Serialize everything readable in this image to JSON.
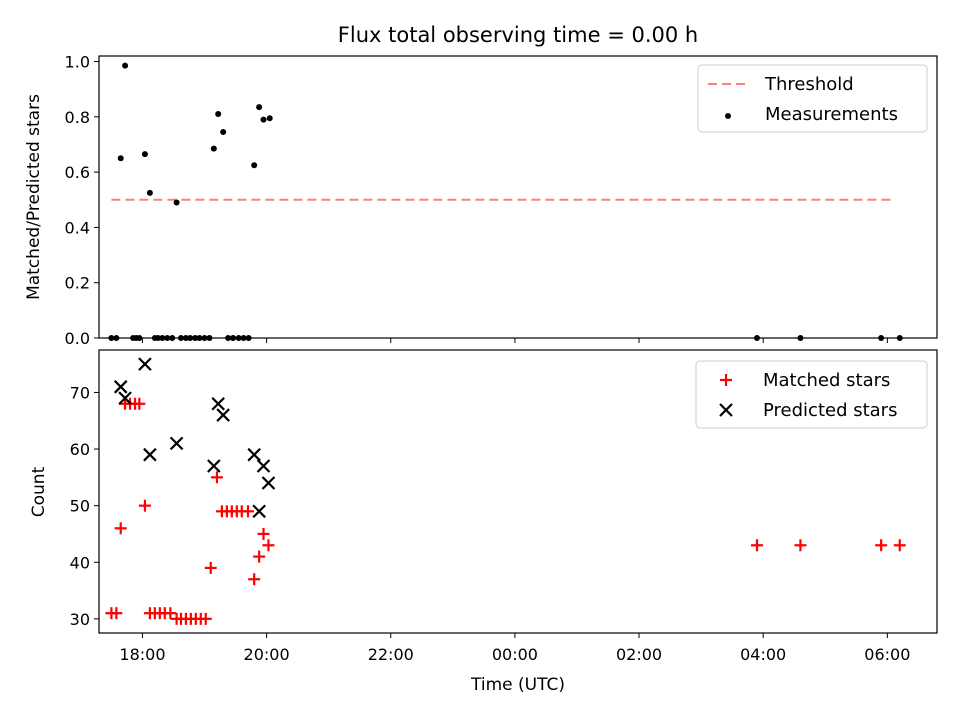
{
  "figure": {
    "title": "Flux total observing time = 0.00 h"
  },
  "chart_data": [
    {
      "type": "scatter",
      "panel": "top",
      "ylabel": "Matched/Predicted stars",
      "xlim": [
        17.3,
        30.8
      ],
      "ylim": [
        0,
        1.02
      ],
      "yticks": [
        0.0,
        0.2,
        0.4,
        0.6,
        0.8,
        1.0
      ],
      "ytick_labels": [
        "0.0",
        "0.2",
        "0.4",
        "0.6",
        "0.8",
        "1.0"
      ],
      "legend": {
        "placement": "top-right",
        "threshold_label": "Threshold",
        "measurements_label": "Measurements"
      },
      "threshold": {
        "value": 0.5,
        "x_start": 17.5,
        "x_end": 30.1,
        "color": "#ff7f7f"
      },
      "measurements": {
        "color": "#000000",
        "x": [
          17.5,
          17.58,
          17.65,
          17.72,
          17.85,
          17.9,
          17.95,
          18.04,
          18.12,
          18.2,
          18.25,
          18.32,
          18.4,
          18.48,
          18.55,
          18.62,
          18.7,
          18.77,
          18.85,
          18.92,
          19.0,
          19.08,
          19.15,
          19.22,
          19.3,
          19.38,
          19.46,
          19.55,
          19.63,
          19.71,
          19.8,
          19.88,
          19.95,
          20.05,
          27.9,
          28.6,
          29.9,
          30.2
        ],
        "y": [
          0.0,
          0.0,
          0.65,
          0.985,
          0.0,
          0.0,
          0.0,
          0.665,
          0.525,
          0.0,
          0.0,
          0.0,
          0.0,
          0.0,
          0.49,
          0.0,
          0.0,
          0.0,
          0.0,
          0.0,
          0.0,
          0.0,
          0.685,
          0.81,
          0.745,
          0.0,
          0.0,
          0.0,
          0.0,
          0.0,
          0.625,
          0.835,
          0.79,
          0.795,
          0.0,
          0.0,
          0.0,
          0.0
        ]
      }
    },
    {
      "type": "scatter",
      "panel": "bottom",
      "xlabel": "Time (UTC)",
      "ylabel": "Count",
      "xlim": [
        17.3,
        30.8
      ],
      "ylim": [
        27.5,
        77.5
      ],
      "xticks": [
        18,
        20,
        22,
        24,
        26,
        28,
        30
      ],
      "xtick_labels": [
        "18:00",
        "20:00",
        "22:00",
        "00:00",
        "02:00",
        "04:00",
        "06:00"
      ],
      "yticks": [
        30,
        40,
        50,
        60,
        70
      ],
      "ytick_labels": [
        "30",
        "40",
        "50",
        "60",
        "70"
      ],
      "legend": {
        "placement": "top-right",
        "matched_label": "Matched stars",
        "predicted_label": "Predicted stars"
      },
      "series": [
        {
          "name": "Matched stars",
          "marker": "+",
          "color": "#ff0000",
          "x": [
            17.5,
            17.58,
            17.65,
            17.72,
            17.8,
            17.88,
            17.95,
            18.04,
            18.12,
            18.2,
            18.28,
            18.36,
            18.45,
            18.55,
            18.62,
            18.7,
            18.78,
            18.86,
            18.94,
            19.02,
            19.1,
            19.2,
            19.28,
            19.36,
            19.44,
            19.52,
            19.6,
            19.7,
            19.8,
            19.88,
            19.95,
            20.03,
            27.9,
            28.6,
            29.9,
            30.2
          ],
          "y": [
            31,
            31,
            46,
            68,
            68,
            68,
            68,
            50,
            31,
            31,
            31,
            31,
            31,
            30,
            30,
            30,
            30,
            30,
            30,
            30,
            39,
            55,
            49,
            49,
            49,
            49,
            49,
            49,
            37,
            41,
            45,
            43,
            43,
            43,
            43,
            43
          ]
        },
        {
          "name": "Predicted stars",
          "marker": "x",
          "color": "#000000",
          "x": [
            17.65,
            17.72,
            18.04,
            18.12,
            18.55,
            19.15,
            19.22,
            19.3,
            19.8,
            19.88,
            19.95,
            20.03
          ],
          "y": [
            71,
            69,
            75,
            59,
            61,
            57,
            68,
            66,
            59,
            49,
            57,
            54
          ]
        }
      ]
    }
  ]
}
